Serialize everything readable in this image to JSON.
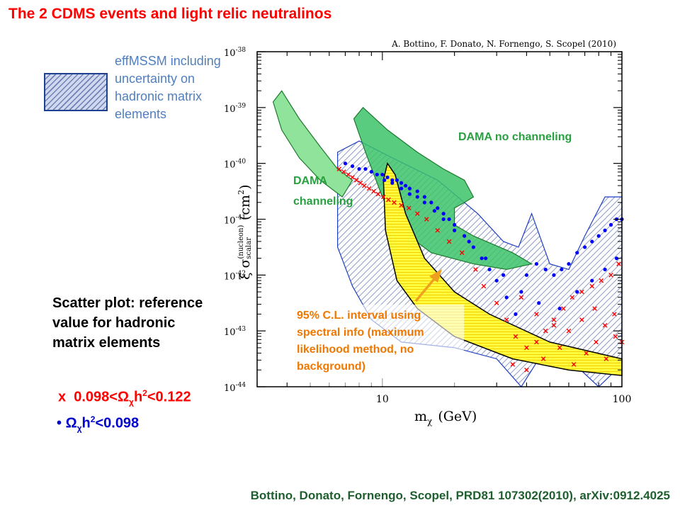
{
  "slide": {
    "title": "The 2 CDMS events and light relic neutralinos",
    "legend": {
      "swatch_pattern": "hatched-blue",
      "text": "effMSSM including uncertainty on hadronic matrix elements"
    },
    "scatter_heading": "Scatter plot: reference value for hadronic matrix elements",
    "symbol_x": {
      "marker": "x",
      "prefix": "0.098<Ω",
      "sub": "χ",
      "mid": "h",
      "sup": "2",
      "suffix": "<0.122"
    },
    "symbol_dot": {
      "marker": "•",
      "prefix": "Ω",
      "sub": "χ",
      "mid": "h",
      "sup": "2",
      "suffix": "<0.098"
    },
    "footer": "Bottino, Donato, Fornengo, Scopel, PRD81 107302(2010), arXiv:0912.4025"
  },
  "chart_data": {
    "type": "scatter",
    "author_note": "A. Bottino, F. Donato, N. Fornengo, S. Scopel  (2010)",
    "xlabel": {
      "symbol": "m",
      "sub": "χ",
      "unit": "(GeV)"
    },
    "ylabel": {
      "prefix": "ξ σ",
      "sup": "(nucleon)",
      "sub": "scalar",
      "unit": "(cm",
      "unit_sup": "2",
      "unit_end": ")"
    },
    "x_scale": "log",
    "y_scale": "log",
    "xlim": [
      3,
      100
    ],
    "ylim": [
      1e-44,
      1e-38
    ],
    "x_ticks": [
      {
        "value": 10,
        "label": "10"
      },
      {
        "value": 100,
        "label": "100"
      }
    ],
    "y_ticks": [
      {
        "exp": -38,
        "base": "10",
        "sup": "-38"
      },
      {
        "exp": -39,
        "base": "10",
        "sup": "-39"
      },
      {
        "exp": -40,
        "base": "10",
        "sup": "-40"
      },
      {
        "exp": -41,
        "base": "10",
        "sup": "-41"
      },
      {
        "exp": -42,
        "base": "10",
        "sup": "-42"
      },
      {
        "exp": -43,
        "base": "10",
        "sup": "-43"
      },
      {
        "exp": -44,
        "base": "10",
        "sup": "-44"
      }
    ],
    "colors": {
      "frame": "#000000",
      "dama": "#2e9e3e",
      "dama_fill": "#3cc36a",
      "dama_channel_fill": "#8fe39a",
      "scatter_blue": "#0000ff",
      "scatter_red": "#ff0000",
      "effmssm_edge": "#1f3fbf",
      "effmssm_hatch": "#6f82b8",
      "cl_fill": "#ffff40",
      "annotation_orange": "#f07800",
      "dama_label": "#28a040"
    },
    "regions": [
      {
        "name": "effMSSM band",
        "style": "hatched",
        "points": [
          [
            6.5,
            -39.8
          ],
          [
            8,
            -39.6
          ],
          [
            11,
            -39.9
          ],
          [
            17,
            -40.3
          ],
          [
            25,
            -40.9
          ],
          [
            32,
            -41.4
          ],
          [
            37,
            -41.5
          ],
          [
            42,
            -40.9
          ],
          [
            50,
            -41.8
          ],
          [
            60,
            -41.9
          ],
          [
            70,
            -41.3
          ],
          [
            85,
            -40.6
          ],
          [
            100,
            -40.6
          ],
          [
            100,
            -43.6
          ],
          [
            80,
            -44
          ],
          [
            60,
            -43.5
          ],
          [
            45,
            -43.5
          ],
          [
            38,
            -44
          ],
          [
            30,
            -43.5
          ],
          [
            20,
            -43.3
          ],
          [
            12,
            -43.2
          ],
          [
            9,
            -42.8
          ],
          [
            7.5,
            -42.2
          ],
          [
            6.5,
            -41.5
          ]
        ]
      },
      {
        "name": "DAMA no channeling",
        "label": "DAMA no channeling",
        "style": "filled",
        "points": [
          [
            7.6,
            -39.2
          ],
          [
            8.3,
            -39.0
          ],
          [
            10.5,
            -39.4
          ],
          [
            14,
            -39.8
          ],
          [
            18,
            -40.1
          ],
          [
            22,
            -40.3
          ],
          [
            24,
            -40.6
          ],
          [
            22,
            -40.7
          ],
          [
            20,
            -40.8
          ],
          [
            20,
            -41.1
          ],
          [
            24,
            -41.3
          ],
          [
            35,
            -41.6
          ],
          [
            42,
            -41.8
          ],
          [
            33,
            -41.9
          ],
          [
            24,
            -41.8
          ],
          [
            16,
            -41.6
          ],
          [
            12,
            -41.2
          ],
          [
            10,
            -40.6
          ],
          [
            8.5,
            -39.8
          ]
        ]
      },
      {
        "name": "DAMA channeling",
        "label": "DAMA channeling",
        "style": "filled-light",
        "points": [
          [
            3.5,
            -38.9
          ],
          [
            3.8,
            -38.7
          ],
          [
            4.5,
            -39.2
          ],
          [
            5.5,
            -39.7
          ],
          [
            6.5,
            -40.1
          ],
          [
            7.5,
            -40.3
          ],
          [
            6.8,
            -40.6
          ],
          [
            5.5,
            -40.3
          ],
          [
            4.5,
            -39.9
          ],
          [
            3.8,
            -39.4
          ]
        ]
      },
      {
        "name": "95% C.L. interval",
        "label": "95% C.L. interval using spectral info (maximum likelihood method, no background)",
        "style": "yellow",
        "points": [
          [
            10.5,
            -40.0
          ],
          [
            11.3,
            -40.2
          ],
          [
            12.5,
            -40.9
          ],
          [
            15,
            -41.7
          ],
          [
            20,
            -42.3
          ],
          [
            28,
            -42.7
          ],
          [
            50,
            -43.2
          ],
          [
            100,
            -43.5
          ],
          [
            100,
            -43.8
          ],
          [
            60,
            -43.7
          ],
          [
            35,
            -43.5
          ],
          [
            20,
            -43.1
          ],
          [
            14,
            -42.6
          ],
          [
            11.5,
            -42.1
          ],
          [
            10.3,
            -41.2
          ],
          [
            10.1,
            -40.3
          ]
        ]
      }
    ],
    "series": [
      {
        "name": "0.098<Ωh²<0.122",
        "marker": "x",
        "color": "red",
        "x": [
          6.6,
          6.9,
          7.2,
          7.5,
          7.8,
          8.1,
          8.4,
          8.8,
          9.2,
          9.6,
          10.1,
          10.6,
          11.2,
          12,
          12.9,
          14,
          15.3,
          17,
          19,
          21.5,
          24.5,
          26.5,
          30,
          33,
          36,
          40,
          44,
          48,
          52,
          57,
          62,
          68,
          75,
          82,
          90,
          97,
          35,
          40,
          47,
          55,
          63,
          71,
          78,
          86,
          94,
          38,
          44,
          52,
          60,
          68,
          77,
          85,
          93,
          100
        ],
        "y": [
          -40.1,
          -40.15,
          -40.2,
          -40.25,
          -40.3,
          -40.35,
          -40.4,
          -40.45,
          -40.5,
          -40.55,
          -40.6,
          -40.65,
          -40.7,
          -40.75,
          -40.8,
          -40.9,
          -41.0,
          -41.2,
          -41.4,
          -41.6,
          -41.9,
          -42.2,
          -42.5,
          -42.8,
          -43.1,
          -43.3,
          -43.2,
          -43.0,
          -42.8,
          -42.6,
          -42.4,
          -42.3,
          -42.2,
          -42.1,
          -42.0,
          -41.8,
          -43.6,
          -43.7,
          -43.5,
          -43.3,
          -43.6,
          -43.4,
          -43.2,
          -43.5,
          -43.1,
          -42.4,
          -42.7,
          -42.9,
          -43.0,
          -42.8,
          -42.6,
          -42.9,
          -42.7,
          -43.2
        ]
      },
      {
        "name": "Ωh²<0.098",
        "marker": "dot",
        "color": "blue",
        "x": [
          7,
          7.5,
          8,
          8.5,
          9,
          9.5,
          10,
          10.5,
          11,
          11.5,
          12,
          12.5,
          13,
          14,
          15,
          16,
          17,
          18,
          19,
          20,
          22,
          24,
          26,
          28,
          30,
          33,
          36,
          40,
          44,
          48,
          52,
          56,
          60,
          65,
          70,
          75,
          80,
          85,
          90,
          95,
          100,
          10.2,
          11,
          12,
          13,
          14,
          15,
          16.5,
          18,
          20,
          23,
          27,
          32,
          38,
          45,
          55,
          65,
          75,
          85,
          95
        ],
        "y": [
          -40.0,
          -40.05,
          -40.1,
          -40.1,
          -40.15,
          -40.2,
          -40.2,
          -40.25,
          -40.3,
          -40.3,
          -40.35,
          -40.4,
          -40.45,
          -40.5,
          -40.6,
          -40.7,
          -40.8,
          -40.9,
          -41.0,
          -41.1,
          -41.3,
          -41.5,
          -41.7,
          -41.9,
          -42.1,
          -42.4,
          -42.7,
          -42.0,
          -41.8,
          -41.9,
          -42.0,
          -41.9,
          -41.8,
          -41.6,
          -41.5,
          -41.4,
          -41.3,
          -41.2,
          -41.1,
          -41.0,
          -41.0,
          -40.3,
          -40.35,
          -40.45,
          -40.55,
          -40.6,
          -40.7,
          -40.85,
          -41.0,
          -41.2,
          -41.4,
          -41.7,
          -42.0,
          -42.3,
          -42.5,
          -42.6,
          -42.3,
          -42.1,
          -41.9,
          -41.7
        ]
      }
    ],
    "annotations": {
      "dama_no_channeling": "DAMA no channeling",
      "dama_channeling": "DAMA channeling",
      "cl_interval": "95% C.L. interval using spectral info (maximum likelihood method, no background)"
    }
  }
}
